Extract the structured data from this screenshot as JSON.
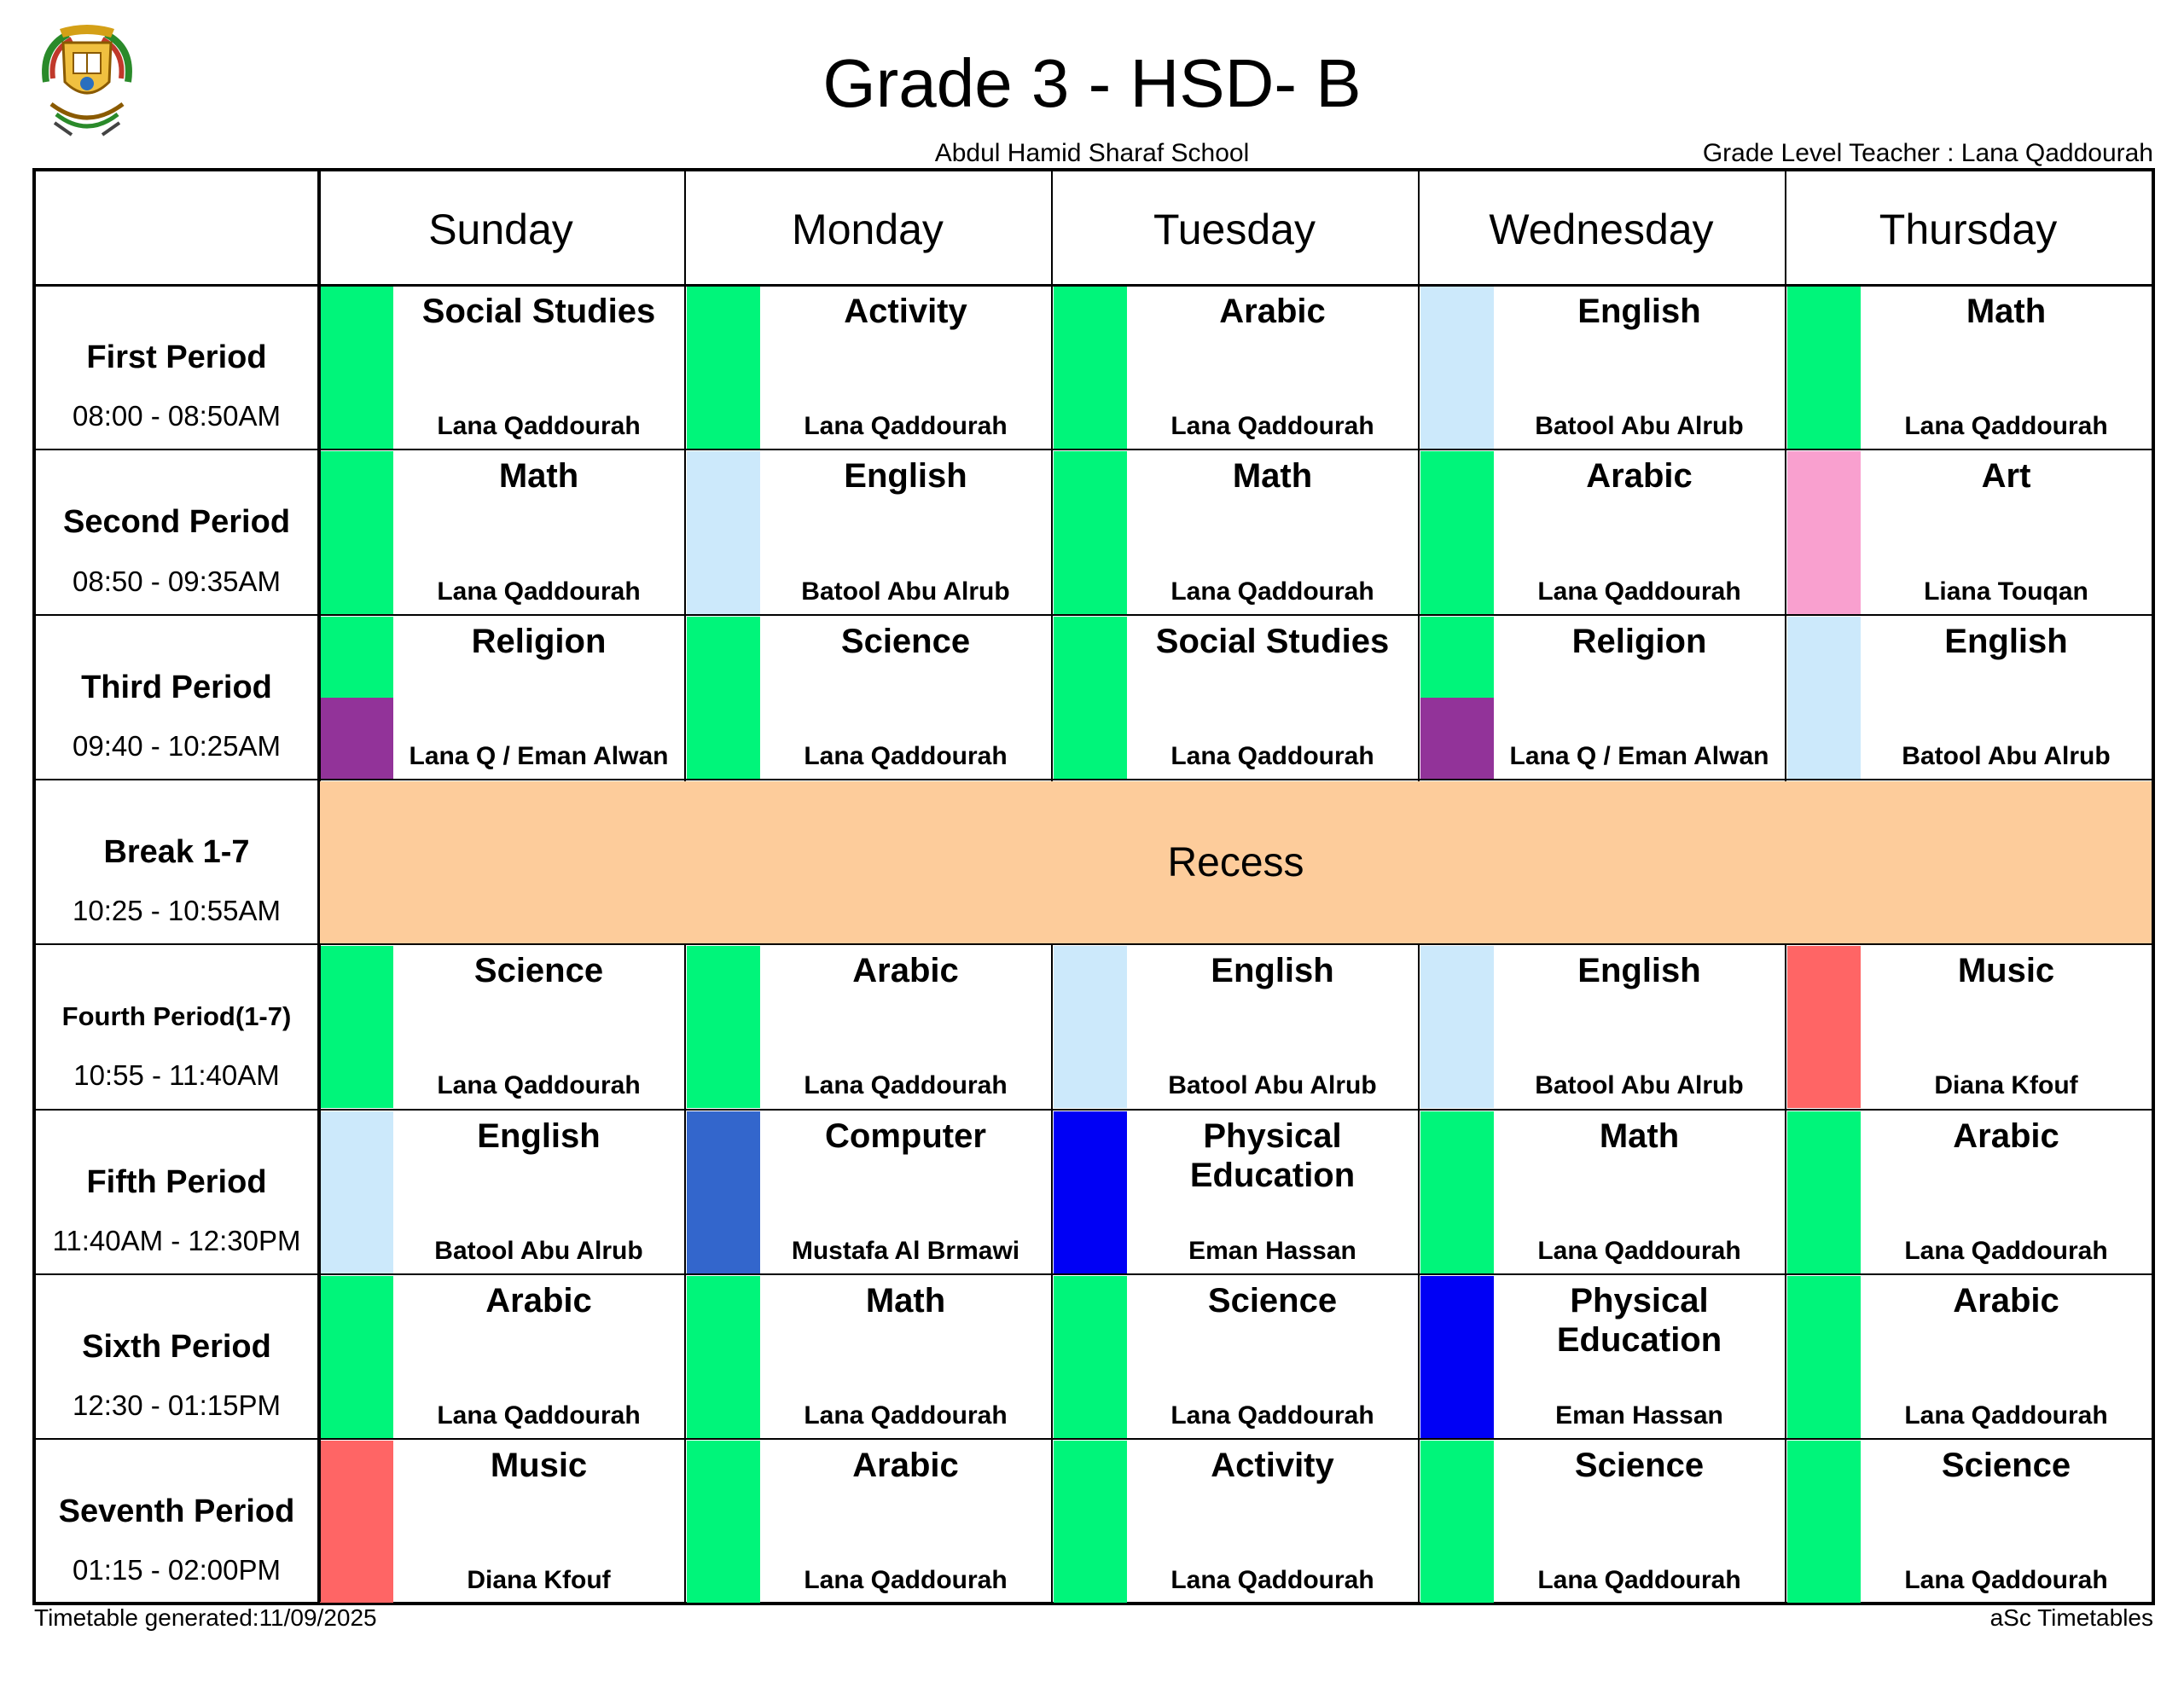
{
  "header": {
    "title": "Grade 3 - HSD- B",
    "school": "Abdul Hamid Sharaf School",
    "grade_level_teacher": "Grade Level Teacher : Lana Qaddourah"
  },
  "days": [
    "Sunday",
    "Monday",
    "Tuesday",
    "Wednesday",
    "Thursday"
  ],
  "periods": [
    {
      "name": "First Period",
      "time": "08:00 - 08:50AM"
    },
    {
      "name": "Second Period",
      "time": "08:50 - 09:35AM"
    },
    {
      "name": "Third Period",
      "time": "09:40 - 10:25AM"
    },
    {
      "name": "Break 1-7",
      "time": "10:25 - 10:55AM"
    },
    {
      "name": "Fourth Period(1-7)",
      "time": "10:55 - 11:40AM"
    },
    {
      "name": "Fifth Period",
      "time": "11:40AM - 12:30PM"
    },
    {
      "name": "Sixth Period",
      "time": "12:30 - 01:15PM"
    },
    {
      "name": "Seventh Period",
      "time": "01:15 - 02:00PM"
    }
  ],
  "recess_label": "Recess",
  "colors": {
    "green": "#00f57a",
    "light_blue": "#cce9fb",
    "pink": "#f9a0cf",
    "purple": "#923399",
    "red": "#ff6565",
    "steel_blue": "#3366cc",
    "blue": "#0000f5",
    "recess": "#fdcc9b"
  },
  "lessons": [
    [
      {
        "subject": "Social Studies",
        "teacher": "Lana Qaddourah",
        "color": "green"
      },
      {
        "subject": "Activity",
        "teacher": "Lana Qaddourah",
        "color": "green"
      },
      {
        "subject": "Arabic",
        "teacher": "Lana Qaddourah",
        "color": "green"
      },
      {
        "subject": "English",
        "teacher": "Batool Abu Alrub",
        "color": "light_blue"
      },
      {
        "subject": "Math",
        "teacher": "Lana Qaddourah",
        "color": "green"
      }
    ],
    [
      {
        "subject": "Math",
        "teacher": "Lana Qaddourah",
        "color": "green"
      },
      {
        "subject": "English",
        "teacher": "Batool Abu Alrub",
        "color": "light_blue"
      },
      {
        "subject": "Math",
        "teacher": "Lana Qaddourah",
        "color": "green"
      },
      {
        "subject": "Arabic",
        "teacher": "Lana Qaddourah",
        "color": "green"
      },
      {
        "subject": "Art",
        "teacher": "Liana Touqan",
        "color": "pink"
      }
    ],
    [
      {
        "subject": "Religion",
        "teacher": "Lana Q / Eman Alwan",
        "color": "green",
        "color2": "purple"
      },
      {
        "subject": "Science",
        "teacher": "Lana Qaddourah",
        "color": "green"
      },
      {
        "subject": "Social Studies",
        "teacher": "Lana Qaddourah",
        "color": "green"
      },
      {
        "subject": "Religion",
        "teacher": "Lana Q / Eman Alwan",
        "color": "green",
        "color2": "purple"
      },
      {
        "subject": "English",
        "teacher": "Batool Abu Alrub",
        "color": "light_blue"
      }
    ],
    [
      {
        "subject": "Science",
        "teacher": "Lana Qaddourah",
        "color": "green"
      },
      {
        "subject": "Arabic",
        "teacher": "Lana Qaddourah",
        "color": "green"
      },
      {
        "subject": "English",
        "teacher": "Batool Abu Alrub",
        "color": "light_blue"
      },
      {
        "subject": "English",
        "teacher": "Batool Abu Alrub",
        "color": "light_blue"
      },
      {
        "subject": "Music",
        "teacher": "Diana Kfouf",
        "color": "red"
      }
    ],
    [
      {
        "subject": "English",
        "teacher": "Batool Abu Alrub",
        "color": "light_blue"
      },
      {
        "subject": "Computer",
        "teacher": "Mustafa Al Brmawi",
        "color": "steel_blue"
      },
      {
        "subject": "Physical Education",
        "teacher": "Eman Hassan",
        "color": "blue"
      },
      {
        "subject": "Math",
        "teacher": "Lana Qaddourah",
        "color": "green"
      },
      {
        "subject": "Arabic",
        "teacher": "Lana Qaddourah",
        "color": "green"
      }
    ],
    [
      {
        "subject": "Arabic",
        "teacher": "Lana Qaddourah",
        "color": "green"
      },
      {
        "subject": "Math",
        "teacher": "Lana Qaddourah",
        "color": "green"
      },
      {
        "subject": "Science",
        "teacher": "Lana Qaddourah",
        "color": "green"
      },
      {
        "subject": "Physical Education",
        "teacher": "Eman Hassan",
        "color": "blue"
      },
      {
        "subject": "Arabic",
        "teacher": "Lana Qaddourah",
        "color": "green"
      }
    ],
    [
      {
        "subject": "Music",
        "teacher": "Diana Kfouf",
        "color": "red"
      },
      {
        "subject": "Arabic",
        "teacher": "Lana Qaddourah",
        "color": "green"
      },
      {
        "subject": "Activity",
        "teacher": "Lana Qaddourah",
        "color": "green"
      },
      {
        "subject": "Science",
        "teacher": "Lana Qaddourah",
        "color": "green"
      },
      {
        "subject": "Science",
        "teacher": "Lana Qaddourah",
        "color": "green"
      }
    ]
  ],
  "footer": {
    "generated": "Timetable generated:11/09/2025",
    "software": "aSc Timetables"
  }
}
